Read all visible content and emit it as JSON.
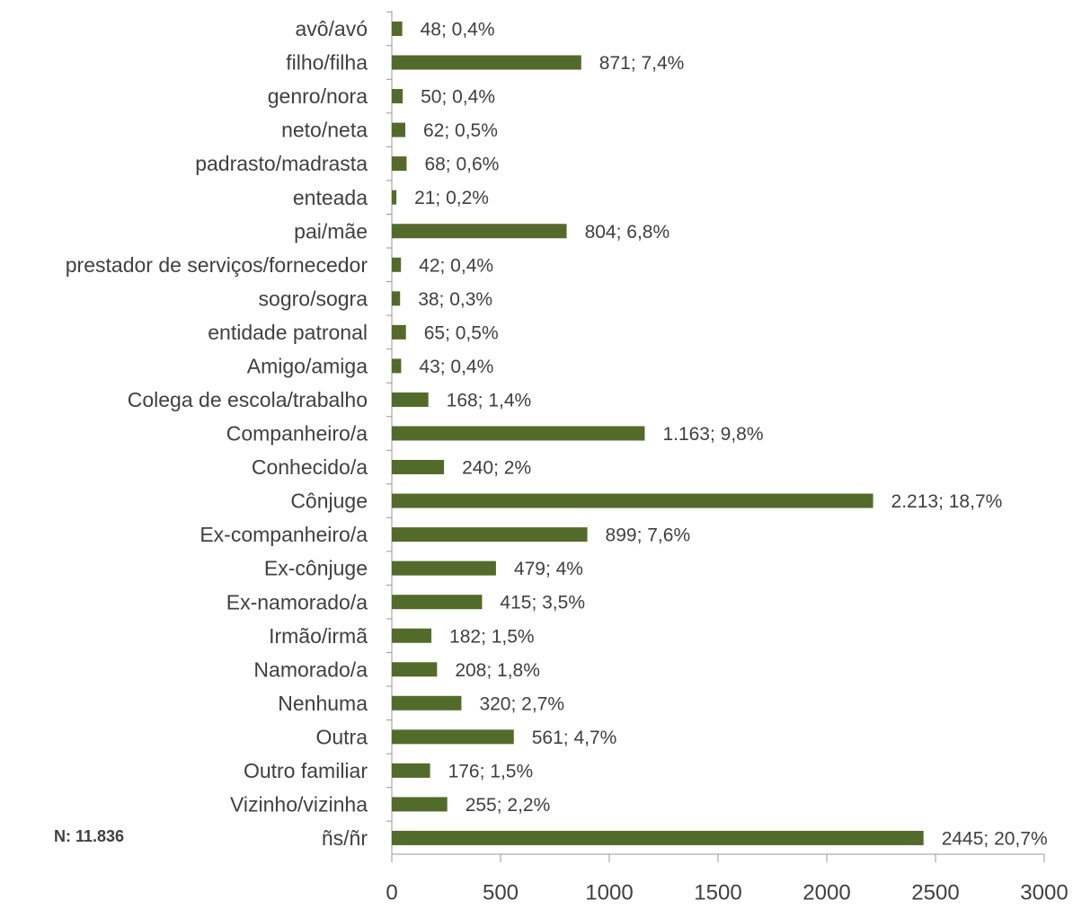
{
  "chart_data": {
    "type": "bar",
    "orientation": "horizontal",
    "categories": [
      "avô/avó",
      "filho/filha",
      "genro/nora",
      "neto/neta",
      "padrasto/madrasta",
      "enteada",
      "pai/mãe",
      "prestador de serviços/fornecedor",
      "sogro/sogra",
      "entidade patronal",
      "Amigo/amiga",
      "Colega de escola/trabalho",
      "Companheiro/a",
      "Conhecido/a",
      "Cônjuge",
      "Ex-companheiro/a",
      "Ex-cônjuge",
      "Ex-namorado/a",
      "Irmão/irmã",
      "Namorado/a",
      "Nenhuma",
      "Outra",
      "Outro familiar",
      "Vizinho/vizinha",
      "ñs/ñr"
    ],
    "values": [
      48,
      871,
      50,
      62,
      68,
      21,
      804,
      42,
      38,
      65,
      43,
      168,
      1163,
      240,
      2213,
      899,
      479,
      415,
      182,
      208,
      320,
      561,
      176,
      255,
      2445
    ],
    "value_labels": [
      "48; 0,4%",
      "871; 7,4%",
      "50; 0,4%",
      "62; 0,5%",
      "68; 0,6%",
      "21; 0,2%",
      "804; 6,8%",
      "42; 0,4%",
      "38; 0,3%",
      "65; 0,5%",
      "43; 0,4%",
      "168; 1,4%",
      "1.163; 9,8%",
      "240; 2%",
      "2.213; 18,7%",
      "899; 7,6%",
      "479; 4%",
      "415; 3,5%",
      "182; 1,5%",
      "208; 1,8%",
      "320; 2,7%",
      "561; 4,7%",
      "176; 1,5%",
      "255; 2,2%",
      "2445; 20,7%"
    ],
    "color": "#536b2a",
    "xlim": [
      0,
      3000
    ],
    "xticks": [
      0,
      500,
      1000,
      1500,
      2000,
      2500,
      3000
    ],
    "annotation": "N: 11.836"
  }
}
